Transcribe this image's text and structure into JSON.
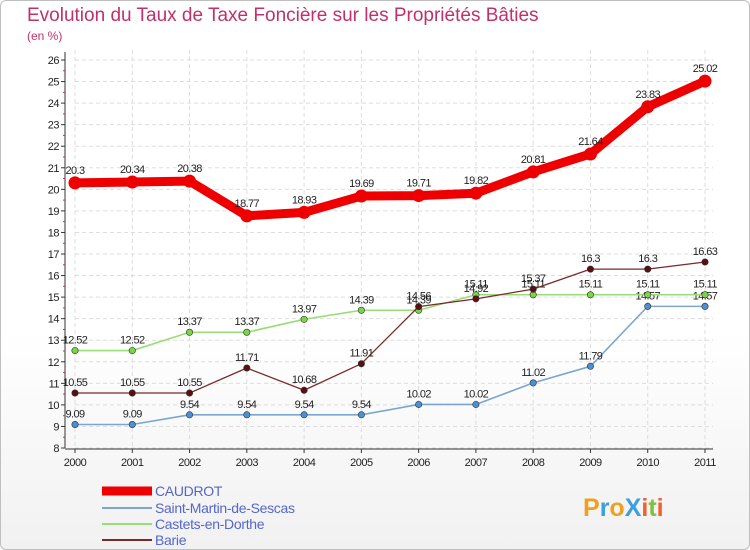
{
  "chart_data": {
    "type": "line",
    "title": "Evolution du Taux de Taxe Foncière sur les Propriétés Bâties",
    "ylabel": "(en %)",
    "xlabel": "",
    "categories": [
      "2000",
      "2001",
      "2002",
      "2003",
      "2004",
      "2005",
      "2006",
      "2007",
      "2008",
      "2009",
      "2010",
      "2011"
    ],
    "ylim": [
      8,
      26
    ],
    "yticks": [
      "8",
      "9",
      "10",
      "11",
      "12",
      "13",
      "14",
      "15",
      "16",
      "17",
      "18",
      "19",
      "20",
      "21",
      "22",
      "23",
      "24",
      "25",
      "26"
    ],
    "series": [
      {
        "name": "CAUDROT",
        "color": "#ee0000",
        "marker": "#ee0000",
        "values": [
          20.3,
          20.34,
          20.38,
          18.77,
          18.93,
          19.69,
          19.71,
          19.82,
          20.81,
          21.64,
          23.83,
          25.02
        ],
        "labels": [
          "20.3",
          "20.34",
          "20.38",
          "18.77",
          "18.93",
          "19.69",
          "19.71",
          "19.82",
          "20.81",
          "21.64",
          "23.83",
          "25.02"
        ]
      },
      {
        "name": "Saint-Martin-de-Sescas",
        "color": "#7aa6cf",
        "marker": "#4d8fd0",
        "values": [
          9.09,
          9.09,
          9.54,
          9.54,
          9.54,
          9.54,
          10.02,
          10.02,
          11.02,
          11.79,
          14.57,
          14.57
        ],
        "labels": [
          "9.09",
          "9.09",
          "9.54",
          "9.54",
          "9.54",
          "9.54",
          "10.02",
          "10.02",
          "11.02",
          "11.79",
          "14.57",
          "14.57"
        ]
      },
      {
        "name": "Castets-en-Dorthe",
        "color": "#99dd77",
        "marker": "#7ad54a",
        "values": [
          12.52,
          12.52,
          13.37,
          13.37,
          13.97,
          14.39,
          14.39,
          15.11,
          15.11,
          15.11,
          15.11,
          15.11
        ],
        "labels": [
          "12.52",
          "12.52",
          "13.37",
          "13.37",
          "13.97",
          "14.39",
          "14.39",
          "15.11",
          "15.11",
          "15.11",
          "15.11",
          "15.11"
        ]
      },
      {
        "name": "Barie",
        "color": "#7a2a2a",
        "marker": "#5a0f14",
        "values": [
          10.55,
          10.55,
          10.55,
          11.71,
          10.68,
          11.91,
          14.56,
          14.92,
          15.37,
          16.3,
          16.3,
          16.63
        ],
        "labels": [
          "10.55",
          "10.55",
          "10.55",
          "11.71",
          "10.68",
          "11.91",
          "14.56",
          "14.92",
          "15.37",
          "16.3",
          "16.3",
          "16.63"
        ]
      }
    ],
    "legend": [
      "CAUDROT",
      "Saint-Martin-de-Sescas",
      "Castets-en-Dorthe",
      "Barie"
    ]
  },
  "brand": {
    "text": "ProXiti",
    "letters": [
      "P",
      "r",
      "o",
      "X",
      "i",
      "t",
      "i"
    ]
  }
}
